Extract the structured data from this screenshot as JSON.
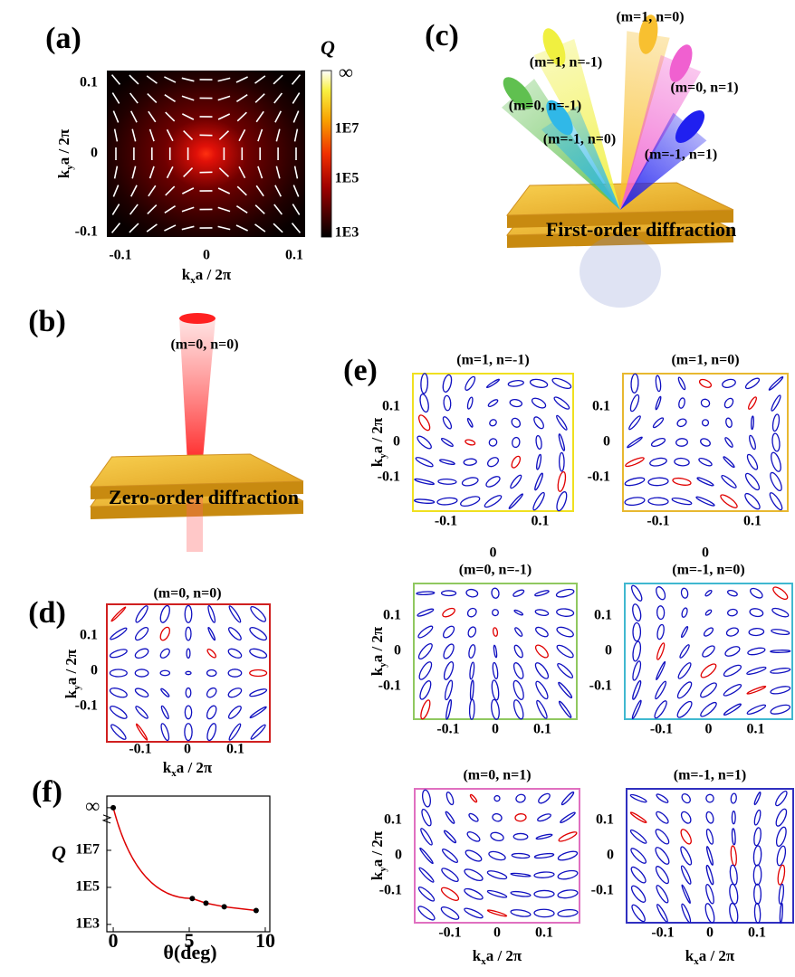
{
  "axis_label_x": {
    "k": "k",
    "sub": "x",
    "rest": "a / 2π"
  },
  "axis_label_y": {
    "k": "k",
    "sub": "y",
    "rest": "a / 2π"
  },
  "panel_a": {
    "label": "(a)",
    "colorbar_title": "Q",
    "colorbar_ticks": [
      "∞",
      "1E7",
      "1E5",
      "1E3"
    ],
    "xticks": [
      "-0.1",
      "0",
      "0.1"
    ],
    "yticks": [
      "0.1",
      "0",
      "-0.1"
    ]
  },
  "panel_b": {
    "label": "(b)",
    "beam": "(m=0, n=0)",
    "caption": "Zero-order diffraction"
  },
  "panel_c": {
    "label": "(c)",
    "caption": "First-order diffraction",
    "beams": [
      "(m=1, n=-1)",
      "(m=1, n=0)",
      "(m=0, n=-1)",
      "(m=0, n=1)",
      "(m=-1, n=0)",
      "(m=-1, n=1)"
    ]
  },
  "panel_d": {
    "label": "(d)",
    "title": "(m=0, n=0)",
    "xticks": [
      "-0.1",
      "0",
      "0.1"
    ],
    "yticks": [
      "0.1",
      "0",
      "-0.1"
    ]
  },
  "panel_e": {
    "label": "(e)",
    "xticks": [
      "-0.1",
      "0",
      "0.1"
    ],
    "yticks": [
      "0.1",
      "0",
      "-0.1"
    ],
    "titles": [
      "(m=1, n=-1)",
      "(m=1, n=0)",
      "(m=0, n=-1)",
      "(m=-1, n=0)",
      "(m=0, n=1)",
      "(m=-1, n=1)"
    ]
  },
  "chart_data": {
    "type": "line",
    "panel_label": "(f)",
    "xlabel": "θ(deg)",
    "ylabel": "Q",
    "x": [
      0,
      5.2,
      6.1,
      7.3,
      9.4
    ],
    "series": [
      {
        "color": "#000000",
        "line_color": "#dd0000",
        "values": [
          2000000000,
          25000,
          14000,
          9000,
          5600
        ]
      }
    ],
    "xlim": [
      -0.42,
      10.3
    ],
    "xticks": [
      0,
      5,
      10
    ],
    "ylim": [
      400,
      8500000000
    ],
    "ylog": true,
    "yticks": [
      {
        "value": 2000000000,
        "label": "∞"
      },
      {
        "value": 10000000,
        "label": "1E7"
      },
      {
        "value": 100000,
        "label": "1E5"
      },
      {
        "value": 1000,
        "label": "1E3"
      }
    ]
  }
}
